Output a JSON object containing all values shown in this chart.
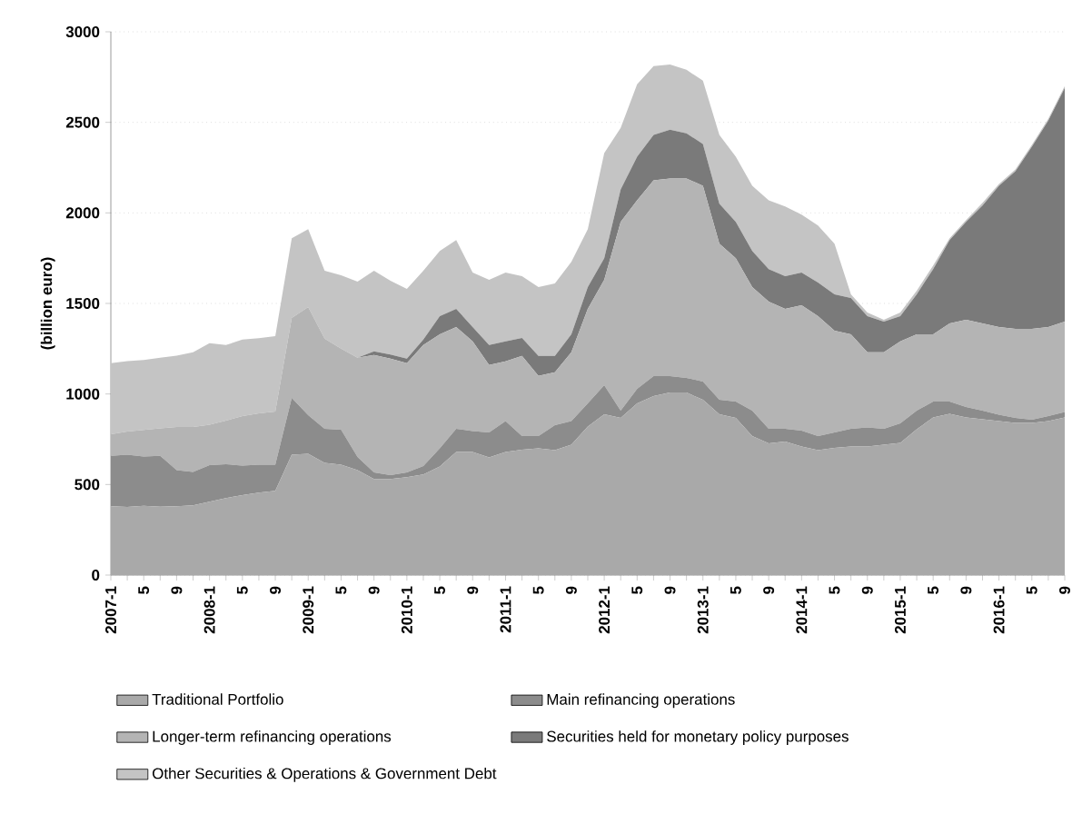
{
  "chart_data": {
    "type": "area",
    "stacked": true,
    "ylabel": "(billion euro)",
    "categories": [
      "2007-1",
      null,
      "5",
      null,
      "9",
      null,
      "2008-1",
      null,
      "5",
      null,
      "9",
      null,
      "2009-1",
      null,
      "5",
      null,
      "9",
      null,
      "2010-1",
      null,
      "5",
      null,
      "9",
      null,
      "2011-1",
      null,
      "5",
      null,
      "9",
      null,
      "2012-1",
      null,
      "5",
      null,
      "9",
      null,
      "2013-1",
      null,
      "5",
      null,
      "9",
      null,
      "2014-1",
      null,
      "5",
      null,
      "9",
      null,
      "2015-1",
      null,
      "5",
      null,
      "9",
      null,
      "2016-1",
      null,
      "5",
      null,
      "9"
    ],
    "series": [
      {
        "name": "Traditional Portfolio",
        "color": "#a9a9a9",
        "values": [
          380,
          376,
          382,
          377,
          380,
          385,
          405,
          425,
          442,
          455,
          465,
          665,
          670,
          620,
          610,
          580,
          530,
          530,
          540,
          555,
          600,
          680,
          680,
          650,
          680,
          692,
          700,
          690,
          720,
          820,
          888,
          868,
          948,
          988,
          1008,
          1008,
          968,
          888,
          868,
          768,
          727,
          737,
          710,
          690,
          702,
          710,
          710,
          720,
          730,
          805,
          870,
          890,
          870,
          860,
          850,
          840,
          840,
          850,
          870
        ]
      },
      {
        "name": "Main refinancing operations",
        "color": "#8c8c8c",
        "values": [
          279,
          289,
          273,
          282,
          200,
          185,
          202,
          187,
          163,
          155,
          145,
          313,
          213,
          188,
          193,
          72,
          37,
          22,
          27,
          47,
          100,
          128,
          115,
          138,
          170,
          76,
          68,
          138,
          130,
          128,
          161,
          40,
          81,
          111,
          91,
          81,
          101,
          80,
          90,
          140,
          81,
          71,
          88,
          78,
          86,
          98,
          105,
          88,
          108,
          103,
          88,
          68,
          58,
          48,
          35,
          28,
          18,
          28,
          30
        ]
      },
      {
        "name": "Longer-term refinancing operations",
        "color": "#b4b4b4",
        "values": [
          119,
          128,
          147,
          151,
          238,
          248,
          223,
          241,
          273,
          283,
          293,
          442,
          597,
          497,
          447,
          548,
          648,
          643,
          603,
          668,
          630,
          562,
          495,
          372,
          330,
          442,
          332,
          292,
          380,
          522,
          581,
          1042,
          1041,
          1081,
          1091,
          1101,
          1081,
          862,
          792,
          682,
          702,
          662,
          692,
          662,
          562,
          522,
          415,
          422,
          452,
          422,
          372,
          432,
          482,
          482,
          485,
          492,
          502,
          492,
          500
        ]
      },
      {
        "name": "Securities held for monetary policy purposes",
        "color": "#7a7a7a",
        "values": [
          0,
          0,
          0,
          0,
          0,
          0,
          0,
          0,
          0,
          0,
          0,
          0,
          0,
          0,
          0,
          0,
          20,
          23,
          25,
          30,
          100,
          100,
          80,
          110,
          110,
          100,
          110,
          90,
          100,
          120,
          120,
          180,
          240,
          250,
          270,
          250,
          230,
          220,
          200,
          200,
          180,
          180,
          180,
          185,
          200,
          200,
          200,
          170,
          140,
          220,
          360,
          460,
          540,
          650,
          780,
          870,
          1005,
          1140,
          1290
        ]
      },
      {
        "name": "Other Securities  & Operations & Government Debt",
        "color": "#c4c4c4",
        "values": [
          392,
          389,
          386,
          390,
          394,
          412,
          450,
          417,
          422,
          415,
          417,
          440,
          430,
          375,
          405,
          420,
          445,
          407,
          385,
          380,
          360,
          380,
          300,
          360,
          380,
          340,
          380,
          400,
          400,
          320,
          580,
          340,
          400,
          380,
          360,
          350,
          350,
          380,
          360,
          360,
          380,
          385,
          320,
          315,
          280,
          20,
          20,
          10,
          20,
          20,
          20,
          10,
          10,
          15,
          10,
          10,
          10,
          10,
          10
        ]
      }
    ],
    "ylim": [
      0,
      3000
    ],
    "yticks": [
      0,
      500,
      1000,
      1500,
      2000,
      2500,
      3000
    ],
    "grid": "y",
    "legend": "bottom"
  }
}
